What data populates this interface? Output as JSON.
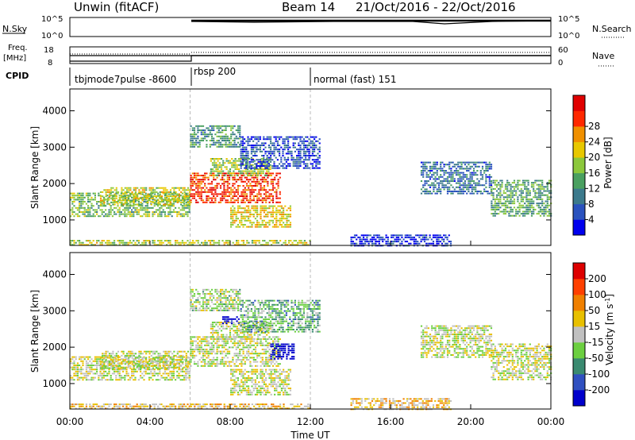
{
  "header": {
    "station": "Unwin (fitACF)",
    "beam": "Beam 14",
    "date_range": "21/Oct/2016 - 22/Oct/2016"
  },
  "strip": {
    "nsky_label": "N.Sky",
    "nsky_ticks_left": [
      "10^5",
      "10^0"
    ],
    "nsky_ticks_right": [
      "10^5",
      "10^0"
    ],
    "nsearch_label": "N.Search",
    "freq_label_1": "Freq.",
    "freq_label_2": "[MHz]",
    "freq_ticks_left": [
      "18",
      "8"
    ],
    "freq_ticks_right": [
      "60",
      "0"
    ],
    "nave_label": "Nave",
    "cpid_label": "CPID",
    "cpid_segments": [
      {
        "label": "tbjmode7pulse -8600",
        "start_hour": 0
      },
      {
        "label": "rbsp 200",
        "start_hour": 6
      },
      {
        "label": "normal (fast) 151",
        "start_hour": 12
      }
    ]
  },
  "chart_data": [
    {
      "type": "heatmap",
      "panel": "power",
      "xlabel": "",
      "ylabel": "Slant Range [km]",
      "xlim_hours": [
        0,
        24
      ],
      "ylim": [
        300,
        4600
      ],
      "y_ticks": [
        "1000",
        "2000",
        "3000",
        "4000"
      ],
      "colorbar_label": "Power [dB]",
      "colorbar_ticks": [
        "4",
        "8",
        "12",
        "16",
        "20",
        "24",
        "28"
      ],
      "colorbar_colors": [
        "#0000ee",
        "#2a52be",
        "#3c7a8c",
        "#4aa060",
        "#8cc83c",
        "#e8c800",
        "#f09000",
        "#ff2800",
        "#e00000"
      ],
      "echo_regions": [
        {
          "h0": 0.0,
          "h1": 6.0,
          "r0": 1100,
          "r1": 1750,
          "level": 0.45
        },
        {
          "h0": 1.5,
          "h1": 6.0,
          "r0": 1400,
          "r1": 1900,
          "level": 0.55
        },
        {
          "h0": 6.0,
          "h1": 10.5,
          "r0": 1500,
          "r1": 2300,
          "level": 0.85
        },
        {
          "h0": 7.0,
          "h1": 10.0,
          "r0": 2200,
          "r1": 2700,
          "level": 0.5
        },
        {
          "h0": 8.5,
          "h1": 12.5,
          "r0": 2400,
          "r1": 3300,
          "level": 0.15
        },
        {
          "h0": 8.0,
          "h1": 11.0,
          "r0": 800,
          "r1": 1400,
          "level": 0.6
        },
        {
          "h0": 6.0,
          "h1": 8.5,
          "r0": 3000,
          "r1": 3600,
          "level": 0.35
        },
        {
          "h0": 14.0,
          "h1": 19.0,
          "r0": 300,
          "r1": 600,
          "level": 0.1
        },
        {
          "h0": 17.5,
          "h1": 21.0,
          "r0": 1700,
          "r1": 2600,
          "level": 0.25
        },
        {
          "h0": 21.0,
          "h1": 24.0,
          "r0": 1100,
          "r1": 2100,
          "level": 0.4
        },
        {
          "h0": 0.0,
          "h1": 12.0,
          "r0": 300,
          "r1": 450,
          "level": 0.55
        }
      ]
    },
    {
      "type": "heatmap",
      "panel": "velocity",
      "xlabel": "Time UT",
      "ylabel": "Slant Range [km]",
      "xlim_hours": [
        0,
        24
      ],
      "ylim": [
        300,
        4600
      ],
      "x_ticks": [
        "00:00",
        "04:00",
        "08:00",
        "12:00",
        "16:00",
        "20:00",
        "00:00"
      ],
      "y_ticks": [
        "1000",
        "2000",
        "3000",
        "4000"
      ],
      "colorbar_label": "Velocity [m s^-1]",
      "colorbar_ticks": [
        "200",
        "100",
        "50",
        "15",
        "-15",
        "-50",
        "-100",
        "-200"
      ],
      "colorbar_colors": [
        "#0000cc",
        "#3050c0",
        "#3a8a70",
        "#6ccf40",
        "#c0c0c0",
        "#e8c000",
        "#f08000",
        "#ff4000",
        "#dd0000"
      ],
      "echo_regions": [
        {
          "h0": 0.0,
          "h1": 6.0,
          "r0": 1100,
          "r1": 1750,
          "level": 0.5
        },
        {
          "h0": 1.5,
          "h1": 6.0,
          "r0": 1400,
          "r1": 1900,
          "level": 0.5
        },
        {
          "h0": 6.0,
          "h1": 10.5,
          "r0": 1500,
          "r1": 2300,
          "level": 0.5
        },
        {
          "h0": 7.0,
          "h1": 10.0,
          "r0": 2200,
          "r1": 2700,
          "level": 0.5
        },
        {
          "h0": 8.5,
          "h1": 12.5,
          "r0": 2400,
          "r1": 3300,
          "level": 0.35
        },
        {
          "h0": 8.0,
          "h1": 11.0,
          "r0": 700,
          "r1": 1400,
          "level": 0.5
        },
        {
          "h0": 6.0,
          "h1": 8.5,
          "r0": 3000,
          "r1": 3600,
          "level": 0.45
        },
        {
          "h0": 14.0,
          "h1": 19.0,
          "r0": 300,
          "r1": 600,
          "level": 0.6
        },
        {
          "h0": 17.5,
          "h1": 21.0,
          "r0": 1700,
          "r1": 2600,
          "level": 0.5
        },
        {
          "h0": 21.0,
          "h1": 24.0,
          "r0": 1100,
          "r1": 2100,
          "level": 0.5
        },
        {
          "h0": 0.0,
          "h1": 12.0,
          "r0": 300,
          "r1": 450,
          "level": 0.6
        },
        {
          "h0": 10.0,
          "h1": 11.2,
          "r0": 1700,
          "r1": 2100,
          "level": 0.0
        },
        {
          "h0": 7.6,
          "h1": 8.4,
          "r0": 2650,
          "r1": 2850,
          "level": 0.0
        }
      ]
    }
  ]
}
